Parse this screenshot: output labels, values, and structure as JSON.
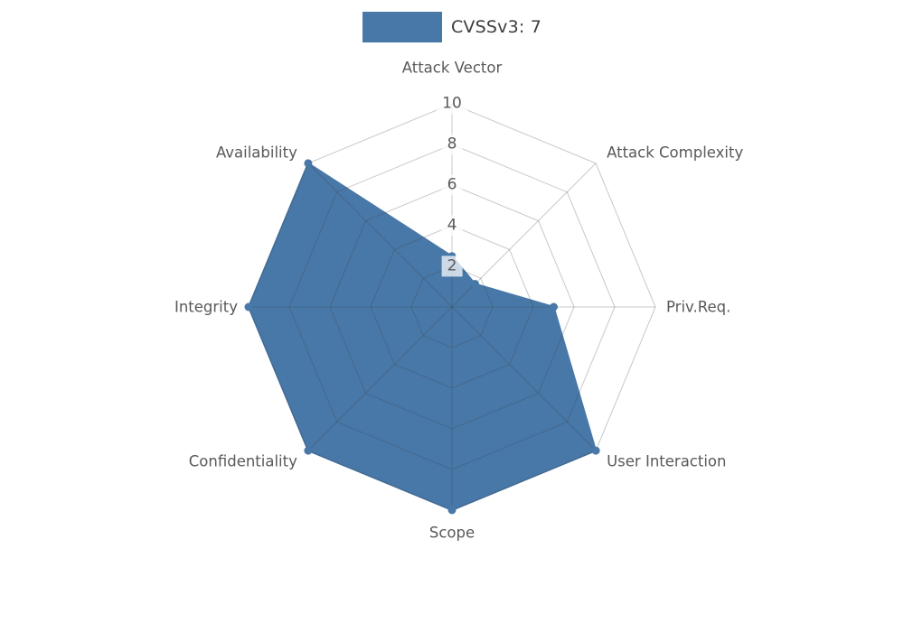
{
  "legend": {
    "label": "CVSSv3: 7",
    "swatch_color": "#4878a8"
  },
  "chart_data": {
    "type": "radar",
    "categories": [
      "Attack Vector",
      "Attack Complexity",
      "Priv.Req.",
      "User Interaction",
      "Scope",
      "Confidentiality",
      "Integrity",
      "Availability"
    ],
    "series": [
      {
        "name": "CVSSv3: 7",
        "values": [
          2.5,
          1.6,
          5,
          10,
          10,
          10,
          10,
          10
        ],
        "color": "#4878a8"
      }
    ],
    "rmax": 10,
    "ticks": [
      10,
      8,
      6,
      4,
      2
    ],
    "tick_labels": [
      "10",
      "8",
      "6",
      "4",
      "2"
    ],
    "grid": true,
    "start_angle_deg": 90,
    "direction": "clockwise",
    "legend_position": "top-center"
  },
  "style": {
    "series_color": "#4878a8",
    "grid_color": "rgba(60,60,60,0.28)",
    "axis_label_color": "#595959",
    "tick_label_color": "#5a5a5a",
    "background": "#ffffff"
  }
}
